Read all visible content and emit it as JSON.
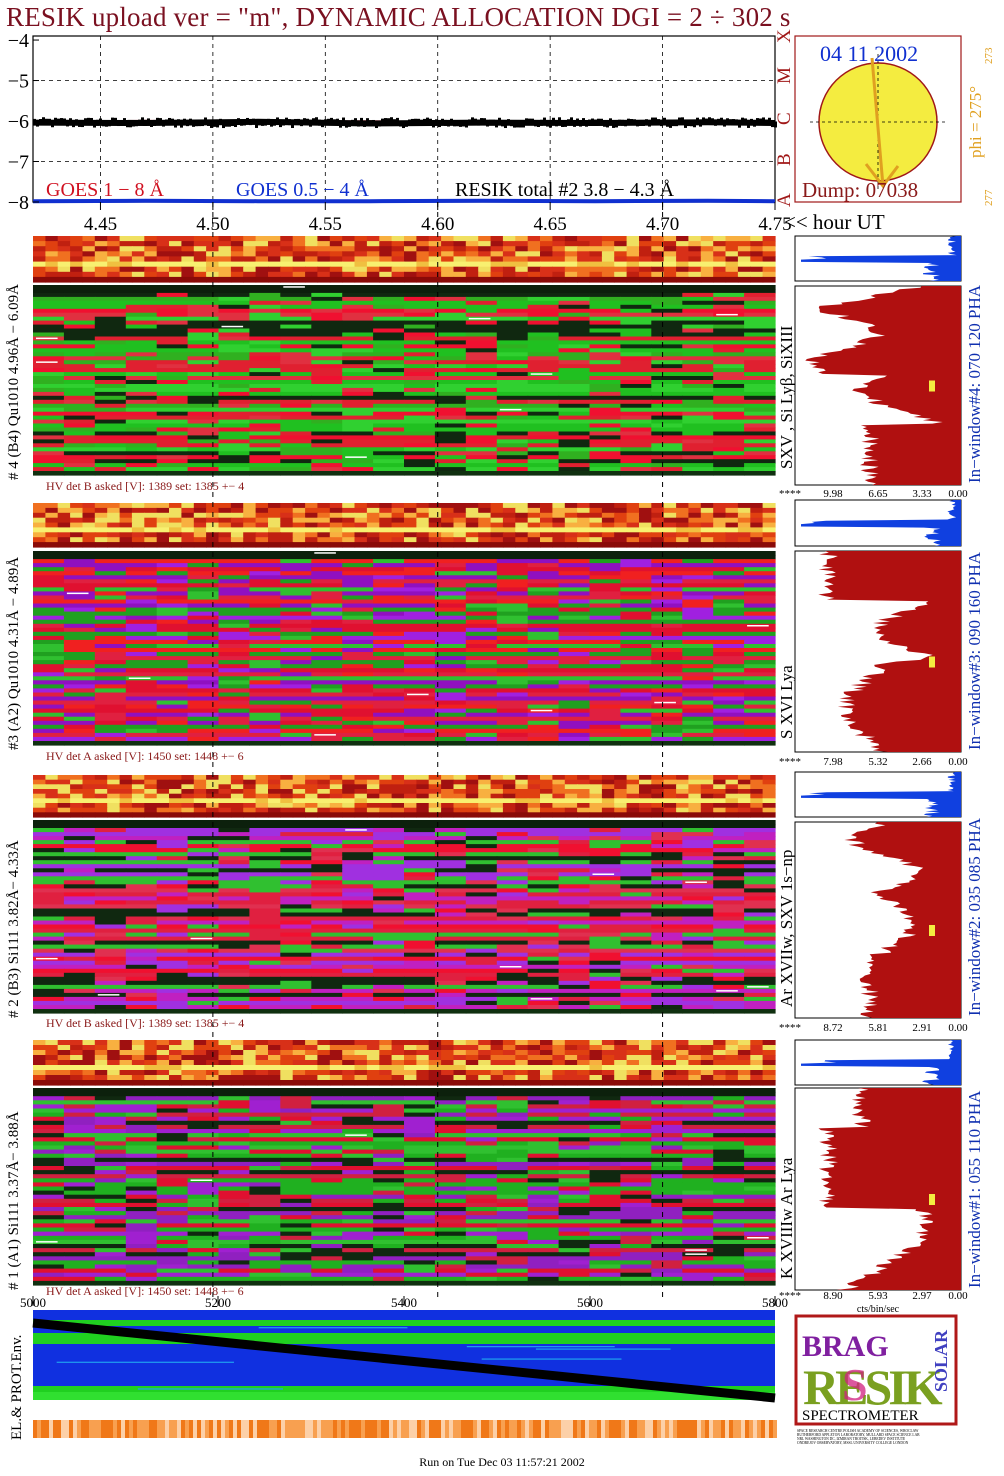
{
  "page": {
    "title": "RESIK upload ver = \"m\", DYNAMIC ALLOCATION  DGI =   2 ÷ 302 s",
    "footer": "Run on Tue Dec 03 11:57:21 2002"
  },
  "colors": {
    "title": "#7a1020",
    "goes_long": "#d01020",
    "goes_short": "#1030d0",
    "resik_total": "#000000",
    "hist_red": "#b01010",
    "hist_blue": "#1040e0",
    "sun_fill": "#f4ec40",
    "sun_edge": "#a01818",
    "arrow": "#e0a020",
    "sidelabel": "#1030b0"
  },
  "lightcurve": {
    "y_ticks": [
      "−4",
      "−5",
      "−6",
      "−7",
      "−8"
    ],
    "flare_classes": [
      "X",
      "M",
      "C",
      "B",
      "A"
    ],
    "legend_goes_long": "GOES 1 − 8 Å",
    "legend_goes_short": "GOES 0.5 − 4 Å",
    "legend_resik": "RESIK total #2  3.8 − 4.3 Å",
    "x_ticks": [
      "4.45",
      "4.50",
      "4.55",
      "4.60",
      "4.65",
      "4.70",
      "4.75"
    ],
    "x_axis_label": "<< hour UT"
  },
  "sun": {
    "date": "04 11 2002",
    "phi_label": "phi = 275°",
    "phi_sup": "273",
    "phi_bottom": "277",
    "dump": "Dump: 07038"
  },
  "channels": [
    {
      "ylabel": "# 4 (B4) Qu1010 4.96Å − 6.09Å",
      "hv": "HV det B asked [V]:  1389 set:  1385 +−   4",
      "lines": "SXV , Si Lyβ, SiXIII",
      "window": "In−window#4:  070 120 PHA",
      "x_ticks": [
        "****",
        "9.98",
        "6.65",
        "3.33",
        "0.00"
      ]
    },
    {
      "ylabel": "#3 (A2) Qu1010  4.31Å − 4.89Å",
      "hv": "HV det A asked [V]:  1450 set:  1448 +−    6",
      "lines": "S XVI Lya",
      "window": "In−window#3:  090 160 PHA",
      "x_ticks": [
        "****",
        "7.98",
        "5.32",
        "2.66",
        "0.00"
      ]
    },
    {
      "ylabel": "# 2 (B3) Si111  3.82Å− 4.33Å",
      "hv": "HV det B asked [V]:  1389 set:  1385 +−   4",
      "lines": "Ar XVIIw,  SXV 1s−np",
      "window": "In−window#2:  035 085 PHA",
      "x_ticks": [
        "****",
        "8.72",
        "5.81",
        "2.91",
        "0.00"
      ]
    },
    {
      "ylabel": "# 1 (A1) Si111  3.37Å− 3.88Å",
      "hv": "HV det A asked [V]:  1450 set:  1448 +−    6",
      "lines": "K XVIIIw  Ar Lya",
      "window": "In−window#1:  055 110 PHA",
      "x_ticks": [
        "****",
        "8.90",
        "5.93",
        "2.97",
        "0.00"
      ]
    }
  ],
  "spectra_axis": {
    "x_unit": "cts/bin/sec"
  },
  "env_panel": {
    "ylabel": "EL.& PROT.Env.",
    "x_ticks": [
      "5000",
      "5200",
      "5400",
      "5600",
      "5800"
    ]
  },
  "logo": {
    "letters_top": "BRAG",
    "letters_main": "RESIK",
    "letters_side": "SOLAR",
    "caption": "SPECTROMETER",
    "fineprint": [
      "SPACE RESEARCH CENTRE POLISH ACADEMY OF SCIENCES, WROCLAW",
      "RUTHERFORD APPLETON LABORATORY, MULLARD SPACE SCIENCE LAB",
      "NRL WASHINGTON DC, IZMIRAN TROITSK, LEBEDEV INSTITUTE",
      "ONDREJOV OBSERVATORY, MSSL UNIVERSITY COLLEGE LONDON"
    ]
  },
  "chart_data": [
    {
      "type": "line",
      "title": "RESIK upload ver = \"m\", DYNAMIC ALLOCATION  DGI =   2 ÷ 302 s",
      "xlabel": "<< hour UT",
      "ylabel": "",
      "xlim": [
        4.42,
        4.75
      ],
      "ylim": [
        -8,
        -3.9
      ],
      "y_scale": "log10 flux (W m−2)",
      "grid": true,
      "series": [
        {
          "name": "GOES 1 − 8 Å",
          "x": [
            4.42,
            4.47,
            4.52,
            4.57,
            4.62,
            4.67,
            4.72,
            4.75
          ],
          "values": [
            -6.02,
            -6.01,
            -6.03,
            -6.02,
            -6.04,
            -6.03,
            -6.05,
            -6.04
          ]
        },
        {
          "name": "GOES 0.5 − 4 Å",
          "x": [
            4.42,
            4.47,
            4.52,
            4.57,
            4.62,
            4.67,
            4.72,
            4.75
          ],
          "values": [
            -7.98,
            -7.97,
            -7.98,
            -7.98,
            -7.97,
            -7.98,
            -7.97,
            -7.98
          ]
        },
        {
          "name": "RESIK total #2  3.8 − 4.3 Å",
          "x": [
            4.42,
            4.47,
            4.52,
            4.57,
            4.62,
            4.67,
            4.72,
            4.75
          ],
          "values": [
            -6.04,
            -6.05,
            -6.02,
            -6.06,
            -6.04,
            -6.05,
            -6.03,
            -6.05
          ]
        }
      ]
    },
    {
      "type": "heatmap",
      "title": "",
      "xlabel": "<< hour UT",
      "ylabel": "channels #4, #3, #2, #1",
      "xlim": [
        4.42,
        4.75
      ],
      "palette": [
        "black",
        "dark green",
        "green",
        "red",
        "magenta",
        "purple",
        "white"
      ]
    },
    {
      "type": "area",
      "title": "",
      "xlabel": "cts/bin/sec",
      "histograms": [
        {
          "channel": "#4",
          "xlim": [
            0,
            9.98
          ]
        },
        {
          "channel": "#3",
          "xlim": [
            0,
            7.98
          ]
        },
        {
          "channel": "#2",
          "xlim": [
            0,
            8.72
          ]
        },
        {
          "channel": "#1",
          "xlim": [
            0,
            8.9
          ]
        }
      ]
    },
    {
      "type": "line",
      "title": "",
      "xlabel": "",
      "ylabel": "EL.& PROT.Env.",
      "xlim": [
        5000,
        5800
      ],
      "series": [
        {
          "x": [
            5000,
            5800
          ],
          "values": [
            0.92,
            0.12
          ]
        }
      ]
    }
  ]
}
